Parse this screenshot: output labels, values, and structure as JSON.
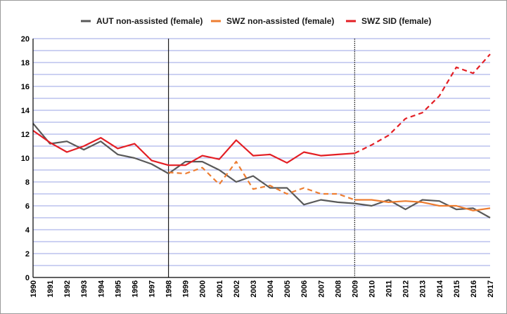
{
  "chart_data": {
    "type": "line",
    "title": "",
    "xlabel": "",
    "ylabel": "",
    "ylim": [
      0,
      20
    ],
    "y_ticks": [
      "0",
      "2",
      "4",
      "6",
      "8",
      "10",
      "12",
      "14",
      "16",
      "18",
      "20"
    ],
    "x_ticks": [
      "1990",
      "1991",
      "1992",
      "1993",
      "1994",
      "1995",
      "1996",
      "1997",
      "1998",
      "1999",
      "2000",
      "2001",
      "2002",
      "2003",
      "2004",
      "2005",
      "2006",
      "2007",
      "2008",
      "2009",
      "2010",
      "2011",
      "2012",
      "2013",
      "2014",
      "2015",
      "2016",
      "2017"
    ],
    "grid": true,
    "legend_position": "top",
    "vertical_markers": [
      {
        "x": 1998,
        "style": "solid"
      },
      {
        "x": 2009,
        "style": "dotted"
      }
    ],
    "series": [
      {
        "name": "AUT non-assisted (female)",
        "color": "#595959",
        "style": "solid",
        "x": [
          1990,
          1991,
          1992,
          1993,
          1994,
          1995,
          1996,
          1997,
          1998,
          1999,
          2000,
          2001,
          2002,
          2003,
          2004,
          2005,
          2006,
          2007,
          2008,
          2009,
          2010,
          2011,
          2012,
          2013,
          2014,
          2015,
          2016,
          2017
        ],
        "values": [
          12.9,
          11.2,
          11.4,
          10.7,
          11.4,
          10.3,
          10.0,
          9.5,
          8.7,
          9.7,
          9.7,
          9.0,
          8.0,
          8.5,
          7.5,
          7.5,
          6.1,
          6.5,
          6.3,
          6.2,
          6.0,
          6.5,
          5.7,
          6.5,
          6.4,
          5.7,
          5.8,
          5.0
        ]
      },
      {
        "name": "SWZ non-assisted (female)",
        "color": "#ed7d31",
        "style": "dashed",
        "x": [
          1998,
          1999,
          2000,
          2001,
          2002,
          2003,
          2004,
          2005,
          2006,
          2007,
          2008,
          2009
        ],
        "values": [
          8.8,
          8.7,
          9.2,
          7.8,
          9.7,
          7.4,
          7.7,
          7.0,
          7.5,
          7.0,
          7.0,
          6.5
        ]
      },
      {
        "name": "SWZ non-assisted (female)",
        "color": "#ed7d31",
        "style": "solid",
        "legend": false,
        "x": [
          2009,
          2010,
          2011,
          2012,
          2013,
          2014,
          2015,
          2016,
          2017
        ],
        "values": [
          6.5,
          6.5,
          6.3,
          6.4,
          6.3,
          6.0,
          6.0,
          5.6,
          5.8
        ]
      },
      {
        "name": "SWZ SID (female)",
        "color": "#e31e24",
        "style": "solid",
        "x": [
          1990,
          1991,
          1992,
          1993,
          1994,
          1995,
          1996,
          1997,
          1998,
          1999,
          2000,
          2001,
          2002,
          2003,
          2004,
          2005,
          2006,
          2007,
          2008,
          2009
        ],
        "values": [
          12.3,
          11.3,
          10.5,
          11.0,
          11.7,
          10.8,
          11.2,
          9.8,
          9.4,
          9.4,
          10.2,
          9.9,
          11.5,
          10.2,
          10.3,
          9.6,
          10.5,
          10.2,
          10.3,
          10.4
        ]
      },
      {
        "name": "SWZ SID (female)",
        "color": "#e31e24",
        "style": "dashed",
        "legend": false,
        "x": [
          2009,
          2010,
          2011,
          2012,
          2013,
          2014,
          2015,
          2016,
          2017
        ],
        "values": [
          10.4,
          11.1,
          11.9,
          13.3,
          13.8,
          15.2,
          17.6,
          17.1,
          18.7
        ]
      }
    ],
    "legend": [
      {
        "name": "AUT non-assisted (female)",
        "color": "#595959"
      },
      {
        "name": "SWZ non-assisted (female)",
        "color": "#ed7d31"
      },
      {
        "name": "SWZ SID (female)",
        "color": "#e31e24"
      }
    ]
  }
}
